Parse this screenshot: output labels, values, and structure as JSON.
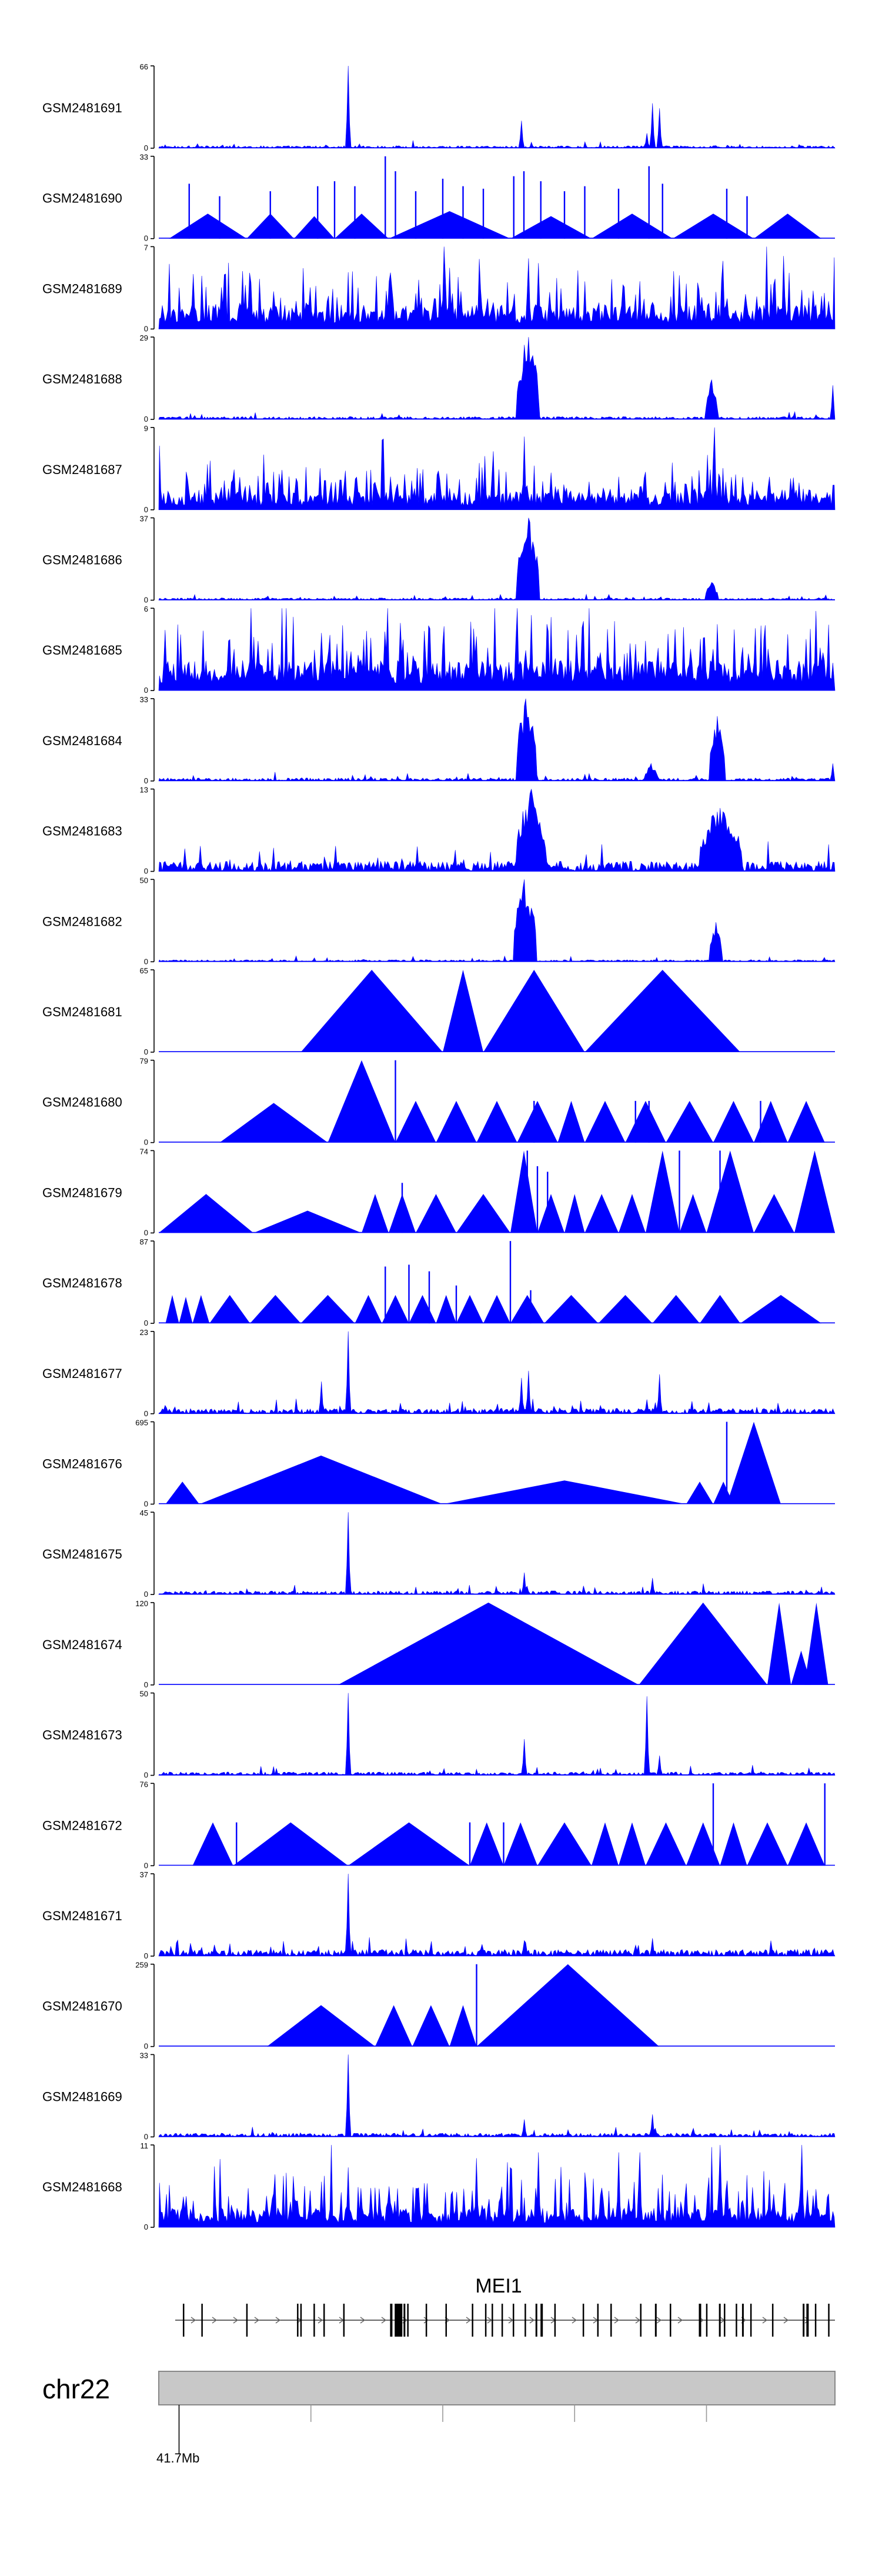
{
  "chart_data": {
    "type": "genome-track",
    "colors": {
      "signal": "#0000ff",
      "axis": "#000000",
      "ideogram": "#c8c8c8"
    },
    "tracks": [
      {
        "label": "GSM2481691",
        "ymax": "66",
        "ymin": "0",
        "style": "peaks",
        "background": 2,
        "peaks": [
          [
            0.28,
            66
          ],
          [
            0.535,
            22
          ],
          [
            0.73,
            36
          ],
          [
            0.74,
            32
          ],
          [
            0.72,
            12
          ]
        ]
      },
      {
        "label": "GSM2481690",
        "ymax": "33",
        "ymin": "0",
        "style": "triangles",
        "segments": [
          [
            0.015,
            0.13,
            10
          ],
          [
            0.13,
            0.2,
            10
          ],
          [
            0.2,
            0.26,
            9
          ],
          [
            0.26,
            0.34,
            10
          ],
          [
            0.34,
            0.52,
            11
          ],
          [
            0.52,
            0.64,
            9
          ],
          [
            0.64,
            0.76,
            10
          ],
          [
            0.76,
            0.88,
            10
          ],
          [
            0.88,
            0.98,
            10
          ]
        ],
        "spikes": [
          [
            0.045,
            22
          ],
          [
            0.09,
            17
          ],
          [
            0.165,
            19
          ],
          [
            0.235,
            21
          ],
          [
            0.26,
            23
          ],
          [
            0.29,
            21
          ],
          [
            0.335,
            33
          ],
          [
            0.35,
            27
          ],
          [
            0.38,
            19
          ],
          [
            0.42,
            24
          ],
          [
            0.45,
            21
          ],
          [
            0.48,
            20
          ],
          [
            0.525,
            25
          ],
          [
            0.54,
            27
          ],
          [
            0.565,
            23
          ],
          [
            0.6,
            19
          ],
          [
            0.63,
            21
          ],
          [
            0.68,
            20
          ],
          [
            0.725,
            29
          ],
          [
            0.745,
            22
          ],
          [
            0.84,
            20
          ],
          [
            0.87,
            17
          ]
        ]
      },
      {
        "label": "GSM2481689",
        "ymax": "7",
        "ymin": "0",
        "style": "noise",
        "seed": 17,
        "base": 1.6,
        "amp": 2.4,
        "peaks": [
          [
            0.42,
            7
          ],
          [
            0.545,
            6
          ],
          [
            0.56,
            5.6
          ],
          [
            0.43,
            5.2
          ]
        ]
      },
      {
        "label": "GSM2481688",
        "ymax": "29",
        "ymin": "0",
        "style": "cluster",
        "background": 1,
        "clusters": [
          [
            0.53,
            0.56,
            29
          ],
          [
            0.81,
            0.825,
            14
          ]
        ],
        "peaks": [
          [
            0.995,
            12
          ]
        ]
      },
      {
        "label": "GSM2481687",
        "ymax": "9",
        "ymin": "0",
        "style": "noise",
        "seed": 23,
        "base": 1.5,
        "amp": 2.4,
        "peaks": [
          [
            0.0,
            7
          ],
          [
            0.54,
            8
          ],
          [
            0.82,
            9
          ],
          [
            0.81,
            6
          ]
        ]
      },
      {
        "label": "GSM2481686",
        "ymax": "37",
        "ymin": "0",
        "style": "cluster",
        "background": 1,
        "clusters": [
          [
            0.53,
            0.56,
            37
          ],
          [
            0.81,
            0.825,
            8
          ]
        ],
        "peaks": []
      },
      {
        "label": "GSM2481685",
        "ymax": "6",
        "ymin": "0",
        "style": "noise",
        "seed": 31,
        "base": 1.7,
        "amp": 2.8,
        "peaks": [
          [
            0.135,
            6
          ],
          [
            0.53,
            6
          ],
          [
            0.55,
            5.5
          ],
          [
            0.97,
            5.8
          ]
        ]
      },
      {
        "label": "GSM2481684",
        "ymax": "33",
        "ymin": "0",
        "style": "cluster",
        "background": 1.2,
        "clusters": [
          [
            0.53,
            0.555,
            33
          ],
          [
            0.815,
            0.835,
            26
          ],
          [
            0.72,
            0.735,
            7
          ]
        ],
        "peaks": [
          [
            0.995,
            7
          ]
        ]
      },
      {
        "label": "GSM2481683",
        "ymax": "13",
        "ymin": "0",
        "style": "cluster",
        "background": 1.6,
        "clusters": [
          [
            0.53,
            0.57,
            13
          ],
          [
            0.8,
            0.86,
            10
          ]
        ],
        "peaks": [
          [
            0.06,
            4
          ],
          [
            0.26,
            4
          ]
        ]
      },
      {
        "label": "GSM2481682",
        "ymax": "50",
        "ymin": "0",
        "style": "cluster",
        "background": 1.2,
        "clusters": [
          [
            0.525,
            0.555,
            50
          ],
          [
            0.815,
            0.83,
            24
          ]
        ],
        "peaks": []
      },
      {
        "label": "GSM2481681",
        "ymax": "65",
        "ymin": "0",
        "style": "triangles",
        "segments": [
          [
            0.21,
            0.42,
            65
          ],
          [
            0.42,
            0.48,
            65
          ],
          [
            0.48,
            0.63,
            65
          ],
          [
            0.63,
            0.86,
            65
          ]
        ],
        "spikes": []
      },
      {
        "label": "GSM2481680",
        "ymax": "79",
        "ymin": "0",
        "style": "triangles",
        "segments": [
          [
            0.09,
            0.25,
            38
          ],
          [
            0.25,
            0.35,
            79
          ],
          [
            0.35,
            0.41,
            40
          ],
          [
            0.41,
            0.47,
            40
          ],
          [
            0.47,
            0.53,
            40
          ],
          [
            0.53,
            0.59,
            40
          ],
          [
            0.59,
            0.63,
            40
          ],
          [
            0.63,
            0.69,
            40
          ],
          [
            0.69,
            0.75,
            40
          ],
          [
            0.75,
            0.82,
            40
          ],
          [
            0.82,
            0.88,
            40
          ],
          [
            0.88,
            0.93,
            40
          ],
          [
            0.93,
            0.985,
            40
          ]
        ],
        "spikes": [
          [
            0.35,
            79
          ],
          [
            0.555,
            40
          ],
          [
            0.705,
            40
          ],
          [
            0.725,
            40
          ],
          [
            0.89,
            40
          ]
        ]
      },
      {
        "label": "GSM2481679",
        "ymax": "74",
        "ymin": "0",
        "style": "triangles",
        "segments": [
          [
            0.0,
            0.14,
            35
          ],
          [
            0.14,
            0.3,
            20
          ],
          [
            0.3,
            0.34,
            35
          ],
          [
            0.34,
            0.38,
            35
          ],
          [
            0.38,
            0.44,
            35
          ],
          [
            0.44,
            0.52,
            35
          ],
          [
            0.52,
            0.56,
            74
          ],
          [
            0.56,
            0.6,
            35
          ],
          [
            0.6,
            0.63,
            35
          ],
          [
            0.63,
            0.68,
            35
          ],
          [
            0.68,
            0.72,
            35
          ],
          [
            0.72,
            0.77,
            74
          ],
          [
            0.77,
            0.81,
            35
          ],
          [
            0.81,
            0.88,
            74
          ],
          [
            0.88,
            0.94,
            35
          ],
          [
            0.94,
            1.0,
            74
          ]
        ],
        "spikes": [
          [
            0.36,
            45
          ],
          [
            0.545,
            74
          ],
          [
            0.56,
            60
          ],
          [
            0.575,
            55
          ],
          [
            0.77,
            74
          ],
          [
            0.83,
            74
          ]
        ]
      },
      {
        "label": "GSM2481678",
        "ymax": "87",
        "ymin": "0",
        "style": "triangles",
        "segments": [
          [
            0.01,
            0.03,
            30
          ],
          [
            0.03,
            0.05,
            28
          ],
          [
            0.05,
            0.075,
            30
          ],
          [
            0.075,
            0.135,
            30
          ],
          [
            0.135,
            0.21,
            30
          ],
          [
            0.21,
            0.29,
            30
          ],
          [
            0.29,
            0.33,
            30
          ],
          [
            0.33,
            0.37,
            30
          ],
          [
            0.37,
            0.41,
            30
          ],
          [
            0.41,
            0.44,
            30
          ],
          [
            0.44,
            0.48,
            30
          ],
          [
            0.48,
            0.52,
            30
          ],
          [
            0.52,
            0.57,
            30
          ],
          [
            0.57,
            0.65,
            30
          ],
          [
            0.65,
            0.73,
            30
          ],
          [
            0.73,
            0.8,
            30
          ],
          [
            0.8,
            0.86,
            30
          ],
          [
            0.86,
            0.98,
            30
          ]
        ],
        "spikes": [
          [
            0.335,
            60
          ],
          [
            0.37,
            62
          ],
          [
            0.4,
            55
          ],
          [
            0.44,
            40
          ],
          [
            0.52,
            87
          ],
          [
            0.55,
            35
          ]
        ]
      },
      {
        "label": "GSM2481677",
        "ymax": "23",
        "ymin": "0",
        "style": "peaks",
        "background": 1.5,
        "peaks": [
          [
            0.28,
            23
          ],
          [
            0.24,
            9
          ],
          [
            0.535,
            10
          ],
          [
            0.545,
            12
          ],
          [
            0.74,
            11
          ],
          [
            0.72,
            4
          ]
        ]
      },
      {
        "label": "GSM2481676",
        "ymax": "695",
        "ymin": "0",
        "style": "triangles",
        "segments": [
          [
            0.01,
            0.06,
            190
          ],
          [
            0.06,
            0.42,
            410
          ],
          [
            0.42,
            0.78,
            200
          ],
          [
            0.78,
            0.82,
            190
          ],
          [
            0.82,
            0.85,
            190
          ],
          [
            0.84,
            0.92,
            695
          ]
        ],
        "spikes": [
          [
            0.84,
            695
          ]
        ]
      },
      {
        "label": "GSM2481675",
        "ymax": "45",
        "ymin": "0",
        "style": "peaks",
        "background": 2,
        "peaks": [
          [
            0.28,
            45
          ],
          [
            0.54,
            12
          ],
          [
            0.73,
            9
          ]
        ]
      },
      {
        "label": "GSM2481674",
        "ymax": "120",
        "ymin": "0",
        "style": "triangles",
        "segments": [
          [
            0.265,
            0.71,
            120
          ],
          [
            0.71,
            0.9,
            120
          ],
          [
            0.9,
            0.935,
            120
          ],
          [
            0.935,
            0.965,
            50
          ],
          [
            0.955,
            0.99,
            120
          ]
        ],
        "spikes": []
      },
      {
        "label": "GSM2481673",
        "ymax": "50",
        "ymin": "0",
        "style": "peaks",
        "background": 2,
        "peaks": [
          [
            0.28,
            50
          ],
          [
            0.54,
            22
          ],
          [
            0.72,
            48
          ],
          [
            0.74,
            12
          ]
        ]
      },
      {
        "label": "GSM2481672",
        "ymax": "76",
        "ymin": "0",
        "style": "triangles",
        "segments": [
          [
            0.05,
            0.11,
            40
          ],
          [
            0.11,
            0.28,
            40
          ],
          [
            0.28,
            0.46,
            40
          ],
          [
            0.46,
            0.51,
            40
          ],
          [
            0.51,
            0.56,
            40
          ],
          [
            0.56,
            0.64,
            40
          ],
          [
            0.64,
            0.68,
            40
          ],
          [
            0.68,
            0.72,
            40
          ],
          [
            0.72,
            0.78,
            40
          ],
          [
            0.78,
            0.83,
            40
          ],
          [
            0.83,
            0.87,
            40
          ],
          [
            0.87,
            0.93,
            40
          ],
          [
            0.93,
            0.985,
            40
          ]
        ],
        "spikes": [
          [
            0.115,
            40
          ],
          [
            0.46,
            40
          ],
          [
            0.51,
            40
          ],
          [
            0.82,
            76
          ],
          [
            0.985,
            76
          ]
        ]
      },
      {
        "label": "GSM2481671",
        "ymax": "37",
        "ymin": "0",
        "style": "peaks",
        "background": 3,
        "peaks": [
          [
            0.28,
            37
          ],
          [
            0.54,
            7
          ],
          [
            0.73,
            8
          ]
        ]
      },
      {
        "label": "GSM2481670",
        "ymax": "259",
        "ymin": "0",
        "style": "triangles",
        "segments": [
          [
            0.16,
            0.32,
            130
          ],
          [
            0.32,
            0.375,
            130
          ],
          [
            0.375,
            0.43,
            130
          ],
          [
            0.43,
            0.47,
            130
          ],
          [
            0.47,
            0.74,
            259
          ]
        ],
        "spikes": [
          [
            0.47,
            259
          ]
        ]
      },
      {
        "label": "GSM2481669",
        "ymax": "33",
        "ymin": "0",
        "style": "peaks",
        "background": 1.5,
        "peaks": [
          [
            0.28,
            33
          ],
          [
            0.54,
            7
          ],
          [
            0.73,
            9
          ]
        ]
      },
      {
        "label": "GSM2481668",
        "ymax": "11",
        "ymin": "0",
        "style": "noise",
        "seed": 47,
        "base": 2.0,
        "amp": 4.0,
        "peaks": [
          [
            0.56,
            10
          ],
          [
            0.68,
            10
          ],
          [
            0.83,
            11
          ],
          [
            0.95,
            11
          ],
          [
            0.28,
            8
          ],
          [
            0.71,
            10
          ]
        ]
      }
    ],
    "gene": {
      "name": "MEI1",
      "strand": "+",
      "exons": [
        [
          0.012,
          1
        ],
        [
          0.04,
          1
        ],
        [
          0.108,
          1
        ],
        [
          0.185,
          1
        ],
        [
          0.19,
          1
        ],
        [
          0.21,
          1
        ],
        [
          0.225,
          1
        ],
        [
          0.255,
          1
        ],
        [
          0.327,
          3
        ],
        [
          0.338,
          12
        ],
        [
          0.347,
          2
        ],
        [
          0.352,
          1
        ],
        [
          0.38,
          1
        ],
        [
          0.41,
          1
        ],
        [
          0.45,
          1
        ],
        [
          0.47,
          1
        ],
        [
          0.48,
          1
        ],
        [
          0.495,
          1
        ],
        [
          0.512,
          1
        ],
        [
          0.53,
          1
        ],
        [
          0.547,
          2
        ],
        [
          0.555,
          3
        ],
        [
          0.575,
          1
        ],
        [
          0.618,
          1
        ],
        [
          0.64,
          1
        ],
        [
          0.66,
          1
        ],
        [
          0.705,
          1
        ],
        [
          0.728,
          2
        ],
        [
          0.75,
          1
        ],
        [
          0.795,
          3
        ],
        [
          0.805,
          1
        ],
        [
          0.825,
          2
        ],
        [
          0.832,
          1
        ],
        [
          0.85,
          1
        ],
        [
          0.86,
          2
        ],
        [
          0.872,
          1
        ],
        [
          0.905,
          1
        ],
        [
          0.952,
          2
        ],
        [
          0.958,
          3
        ],
        [
          0.97,
          1
        ],
        [
          0.99,
          1
        ]
      ]
    },
    "ideogram": {
      "chromosome": "chr22",
      "ticks": [
        0.03,
        0.225,
        0.42,
        0.615,
        0.81
      ],
      "tick_label": "41.7Mb",
      "labeled_tick": 0
    }
  }
}
